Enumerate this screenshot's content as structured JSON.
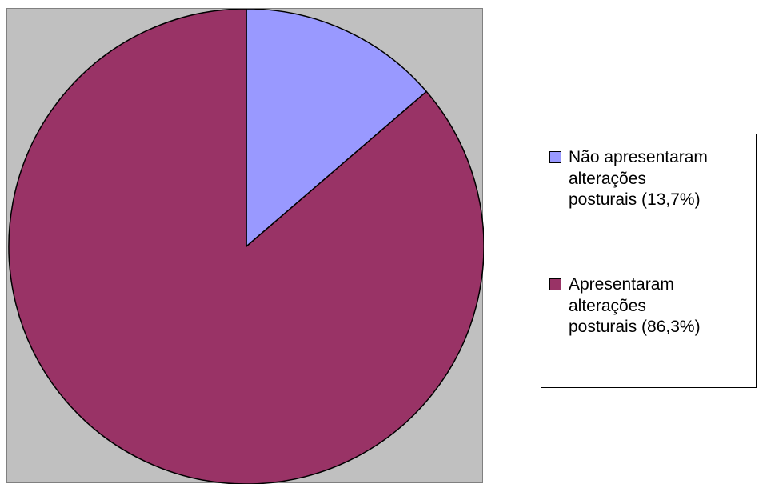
{
  "chart_data": {
    "type": "pie",
    "start_angle": "top",
    "direction": "clockwise",
    "series": [
      {
        "label": "Não apresentaram\nalterações\nposturais (13,7%)",
        "value": 13.7,
        "color": "#9999ff"
      },
      {
        "label": "Apresentaram\nalterações\nposturais (86,3%)",
        "value": 86.3,
        "color": "#993366"
      }
    ],
    "plot_background": "#c0c0c0",
    "legend_position": "right"
  }
}
